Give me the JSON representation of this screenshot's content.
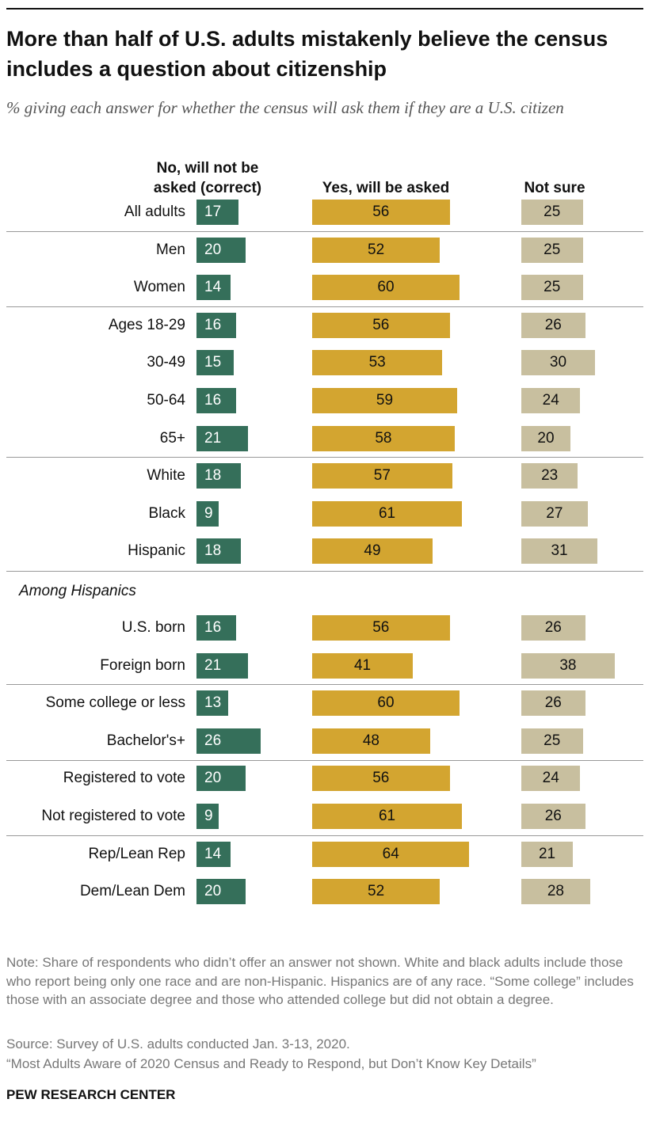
{
  "chart_data": {
    "type": "bar",
    "title": "More than half of U.S. adults mistakenly believe the census includes a question about citizenship",
    "subtitle": "% giving each answer for whether the census will ask them if they are a U.S. citizen",
    "categories": [
      "All adults",
      "Men",
      "Women",
      "Ages 18-29",
      "30-49",
      "50-64",
      "65+",
      "White",
      "Black",
      "Hispanic",
      "U.S. born",
      "Foreign born",
      "Some college or less",
      "Bachelor's+",
      "Registered to vote",
      "Not registered to vote",
      "Rep/Lean Rep",
      "Dem/Lean Dem"
    ],
    "annotations": [
      "Among Hispanics"
    ],
    "series": [
      {
        "name": "No, will not be asked (correct)",
        "color": "#356f5a",
        "values": [
          17,
          20,
          14,
          16,
          15,
          16,
          21,
          18,
          9,
          18,
          16,
          21,
          13,
          26,
          20,
          9,
          14,
          20
        ]
      },
      {
        "name": "Yes, will be asked",
        "color": "#d3a530",
        "values": [
          56,
          52,
          60,
          56,
          53,
          59,
          58,
          57,
          61,
          49,
          56,
          41,
          60,
          48,
          56,
          61,
          64,
          52
        ]
      },
      {
        "name": "Not sure",
        "color": "#c8bf9f",
        "values": [
          25,
          25,
          25,
          26,
          30,
          24,
          20,
          23,
          27,
          31,
          26,
          38,
          26,
          25,
          24,
          26,
          21,
          28
        ]
      }
    ],
    "note": "Note: Share of respondents who didn’t offer an answer not shown. White and black adults include those who report being only one race and are non-Hispanic. Hispanics are of any race. “Some college” includes those with an associate degree and those who attended college but did not obtain a degree.",
    "source": "Source: Survey of U.S. adults conducted Jan. 3-13, 2020.",
    "citation": "“Most Adults Aware of 2020 Census and Ready to Respond, but Don’t Know Key Details”",
    "credit": "PEW RESEARCH CENTER"
  }
}
